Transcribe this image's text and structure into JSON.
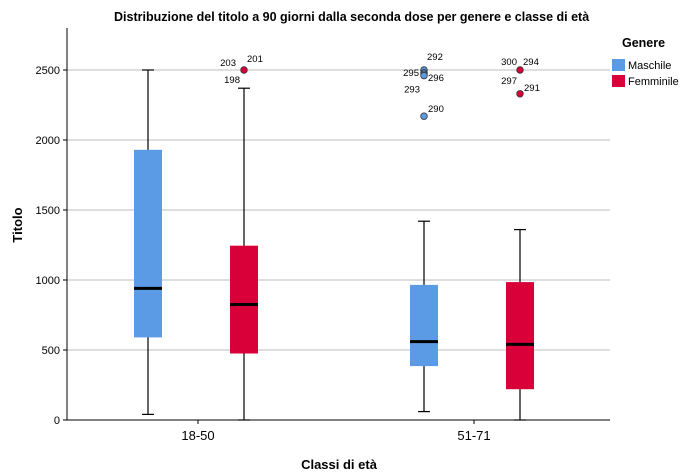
{
  "chart_data": {
    "type": "boxplot",
    "title": "Distribuzione del titolo a 90 giorni dalla seconda dose per genere e classe di età",
    "xlabel": "Classi di età",
    "ylabel": "Titolo",
    "ylim": [
      0,
      2800
    ],
    "yticks": [
      0,
      500,
      1000,
      1500,
      2000,
      2500
    ],
    "categories": [
      "18-50",
      "51-71"
    ],
    "grid": "horizontal",
    "legend": {
      "title": "Genere",
      "placement": "right",
      "entries": [
        "Maschile",
        "Femminile"
      ]
    },
    "series": [
      {
        "name": "Maschile",
        "color": "#5b9be6",
        "boxes": [
          {
            "category": "18-50",
            "min": 40,
            "q1": 590,
            "median": 940,
            "q3": 1930,
            "max": 2500
          },
          {
            "category": "51-71",
            "min": 60,
            "q1": 385,
            "median": 560,
            "q3": 965,
            "max": 1420
          }
        ],
        "outliers": [
          {
            "category": "51-71",
            "value": 2500,
            "label": "292"
          },
          {
            "category": "51-71",
            "value": 2480,
            "label": "295"
          },
          {
            "category": "51-71",
            "value": 2470,
            "label": "296"
          },
          {
            "category": "51-71",
            "value": 2460,
            "label": "293"
          },
          {
            "category": "51-71",
            "value": 2170,
            "label": "290"
          }
        ]
      },
      {
        "name": "Femminile",
        "color": "#d9003a",
        "boxes": [
          {
            "category": "18-50",
            "min": 0,
            "q1": 475,
            "median": 825,
            "q3": 1245,
            "max": 2370
          },
          {
            "category": "51-71",
            "min": 0,
            "q1": 220,
            "median": 540,
            "q3": 985,
            "max": 1360
          }
        ],
        "outliers": [
          {
            "category": "18-50",
            "value": 2500,
            "label": "203"
          },
          {
            "category": "18-50",
            "value": 2500,
            "label": "201"
          },
          {
            "category": "18-50",
            "value": 2500,
            "label": "198"
          },
          {
            "category": "51-71",
            "value": 2500,
            "label": "300"
          },
          {
            "category": "51-71",
            "value": 2500,
            "label": "294"
          },
          {
            "category": "51-71",
            "value": 2500,
            "label": "297"
          },
          {
            "category": "51-71",
            "value": 2330,
            "label": "291"
          }
        ]
      }
    ]
  }
}
